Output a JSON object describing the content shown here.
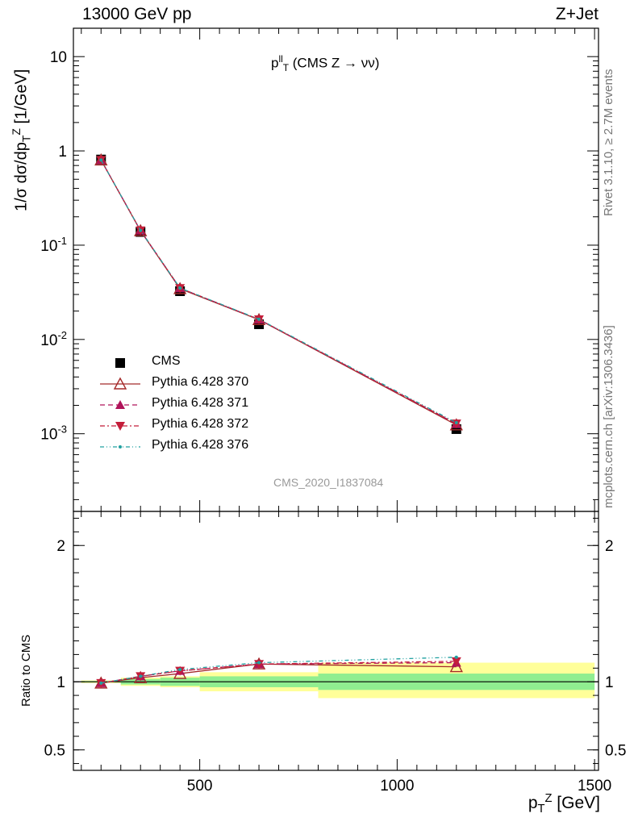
{
  "header": {
    "left_text": "13000 GeV pp",
    "right_text": "Z+Jet"
  },
  "side_text": {
    "rivet": "Rivet 3.1.10, ≥ 2.7M events",
    "mcplots": "mcplots.cern.ch [arXiv:1306.3436]"
  },
  "analysis_id": "CMS_2020_I1837084",
  "plot_title": {
    "main": "p",
    "sup": "ll",
    "sub": "T",
    "suffix": " (CMS Z → νν)"
  },
  "y_axis_main": {
    "prefix": "1/σ dσ/dp",
    "sub": "T",
    "sup": "Z",
    "suffix": " [1/GeV]"
  },
  "y_axis_ratio": "Ratio to CMS",
  "x_axis": {
    "main": "p",
    "sub": "T",
    "sup": "Z",
    "suffix": " [GeV]"
  },
  "colors": {
    "data": "#000000",
    "p370": "#a52a2a",
    "p371": "#b0145a",
    "p372": "#c41e3a",
    "p376": "#20a0a0",
    "band_inner": "#90ee90",
    "band_outer": "#ffff99"
  },
  "legend": [
    {
      "label": "CMS",
      "symbol": "square",
      "color": "#000000",
      "dash": "none"
    },
    {
      "label": "Pythia 6.428 370",
      "symbol": "triangle-open",
      "color": "#a52a2a",
      "dash": "solid"
    },
    {
      "label": "Pythia 6.428 371",
      "symbol": "triangle-up",
      "color": "#b0145a",
      "dash": "dashed"
    },
    {
      "label": "Pythia 6.428 372",
      "symbol": "triangle-down",
      "color": "#c41e3a",
      "dash": "dashdot"
    },
    {
      "label": "Pythia 6.428 376",
      "symbol": "dot",
      "color": "#20a0a0",
      "dash": "dashdotdot"
    }
  ],
  "chart_data": [
    {
      "type": "line",
      "panel": "main",
      "y_scale": "log",
      "ylim": [
        0.00015,
        20
      ],
      "xlim": [
        180,
        1510
      ],
      "y_ticks": [
        {
          "value": 10,
          "label": "10"
        },
        {
          "value": 1,
          "label": "1"
        },
        {
          "value": 0.1,
          "label": "10^-1"
        },
        {
          "value": 0.01,
          "label": "10^-2"
        },
        {
          "value": 0.001,
          "label": "10^-3"
        }
      ],
      "x": [
        250,
        350,
        450,
        650,
        1150
      ],
      "series": [
        {
          "name": "CMS",
          "values": [
            0.81,
            0.138,
            0.0325,
            0.0145,
            0.00112
          ]
        },
        {
          "name": "Pythia 6.428 370",
          "values": [
            0.8,
            0.142,
            0.0345,
            0.0162,
            0.00124
          ]
        },
        {
          "name": "Pythia 6.428 371",
          "values": [
            0.8,
            0.143,
            0.035,
            0.0163,
            0.00127
          ]
        },
        {
          "name": "Pythia 6.428 372",
          "values": [
            0.8,
            0.143,
            0.035,
            0.0163,
            0.00128
          ]
        },
        {
          "name": "Pythia 6.428 376",
          "values": [
            0.8,
            0.143,
            0.0351,
            0.0164,
            0.00131
          ]
        }
      ]
    },
    {
      "type": "line",
      "panel": "ratio",
      "ylim": [
        0.35,
        2.25
      ],
      "xlim": [
        180,
        1510
      ],
      "x_ticks": [
        500,
        1000,
        1500
      ],
      "y_ticks": [
        0.5,
        1,
        2
      ],
      "x": [
        250,
        350,
        450,
        650,
        1150
      ],
      "bands": [
        {
          "x_low": 200,
          "x_high": 300,
          "inner": [
            0.995,
            1.005
          ],
          "outer": [
            0.99,
            1.01
          ]
        },
        {
          "x_low": 300,
          "x_high": 400,
          "inner": [
            0.98,
            1.02
          ],
          "outer": [
            0.97,
            1.03
          ]
        },
        {
          "x_low": 400,
          "x_high": 500,
          "inner": [
            0.97,
            1.03
          ],
          "outer": [
            0.96,
            1.04
          ]
        },
        {
          "x_low": 500,
          "x_high": 800,
          "inner": [
            0.96,
            1.04
          ],
          "outer": [
            0.93,
            1.07
          ]
        },
        {
          "x_low": 800,
          "x_high": 1500,
          "inner": [
            0.94,
            1.06
          ],
          "outer": [
            0.88,
            1.14
          ]
        }
      ],
      "series": [
        {
          "name": "Pythia 6.428 370",
          "values": [
            0.99,
            1.03,
            1.06,
            1.13,
            1.11
          ]
        },
        {
          "name": "Pythia 6.428 371",
          "values": [
            0.99,
            1.04,
            1.08,
            1.13,
            1.14
          ]
        },
        {
          "name": "Pythia 6.428 372",
          "values": [
            0.99,
            1.04,
            1.08,
            1.13,
            1.15
          ]
        },
        {
          "name": "Pythia 6.428 376",
          "values": [
            0.99,
            1.04,
            1.09,
            1.14,
            1.18
          ]
        }
      ]
    }
  ]
}
